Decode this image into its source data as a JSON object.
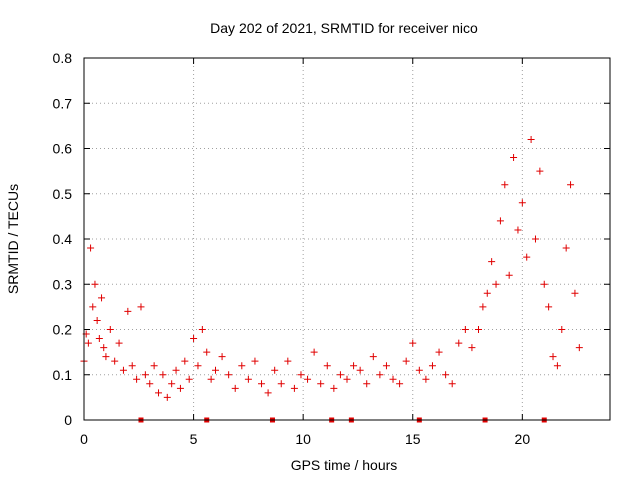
{
  "chart_data": {
    "type": "scatter",
    "title": "Day 202 of 2021, SRMTID for receiver nico",
    "xlabel": "GPS time / hours",
    "ylabel": "SRMTID / TECUs",
    "xlim": [
      0,
      24
    ],
    "ylim": [
      0,
      0.8
    ],
    "x_ticks": [
      "0",
      "5",
      "10",
      "15",
      "20"
    ],
    "y_ticks": [
      "0",
      "0.1",
      "0.2",
      "0.3",
      "0.4",
      "0.5",
      "0.6",
      "0.7",
      "0.8"
    ],
    "grid": true,
    "marker": "plus",
    "color": "#e00000",
    "bottom_markers_hours": [
      2.6,
      5.6,
      8.6,
      11.3,
      12.2,
      15.3,
      18.3,
      21.0
    ],
    "series": [
      {
        "name": "SRMTID",
        "x": [
          0.0,
          0.1,
          0.2,
          0.3,
          0.4,
          0.5,
          0.6,
          0.7,
          0.8,
          0.9,
          1.0,
          1.2,
          1.4,
          1.6,
          1.8,
          2.0,
          2.2,
          2.4,
          2.6,
          2.8,
          3.0,
          3.2,
          3.4,
          3.6,
          3.8,
          4.0,
          4.2,
          4.4,
          4.6,
          4.8,
          5.0,
          5.2,
          5.4,
          5.6,
          5.8,
          6.0,
          6.3,
          6.6,
          6.9,
          7.2,
          7.5,
          7.8,
          8.1,
          8.4,
          8.7,
          9.0,
          9.3,
          9.6,
          9.9,
          10.2,
          10.5,
          10.8,
          11.1,
          11.4,
          11.7,
          12.0,
          12.3,
          12.6,
          12.9,
          13.2,
          13.5,
          13.8,
          14.1,
          14.4,
          14.7,
          15.0,
          15.3,
          15.6,
          15.9,
          16.2,
          16.5,
          16.8,
          17.1,
          17.4,
          17.7,
          18.0,
          18.2,
          18.4,
          18.6,
          18.8,
          19.0,
          19.2,
          19.4,
          19.6,
          19.8,
          20.0,
          20.2,
          20.4,
          20.6,
          20.8,
          21.0,
          21.2,
          21.4,
          21.6,
          21.8,
          22.0,
          22.2,
          22.4,
          22.6
        ],
        "y": [
          0.13,
          0.19,
          0.17,
          0.38,
          0.25,
          0.3,
          0.22,
          0.18,
          0.27,
          0.16,
          0.14,
          0.2,
          0.13,
          0.17,
          0.11,
          0.24,
          0.12,
          0.09,
          0.25,
          0.1,
          0.08,
          0.12,
          0.06,
          0.1,
          0.05,
          0.08,
          0.11,
          0.07,
          0.13,
          0.09,
          0.18,
          0.12,
          0.2,
          0.15,
          0.09,
          0.11,
          0.14,
          0.1,
          0.07,
          0.12,
          0.09,
          0.13,
          0.08,
          0.06,
          0.11,
          0.08,
          0.13,
          0.07,
          0.1,
          0.09,
          0.15,
          0.08,
          0.12,
          0.07,
          0.1,
          0.09,
          0.12,
          0.11,
          0.08,
          0.14,
          0.1,
          0.12,
          0.09,
          0.08,
          0.13,
          0.17,
          0.11,
          0.09,
          0.12,
          0.15,
          0.1,
          0.08,
          0.17,
          0.2,
          0.16,
          0.2,
          0.25,
          0.28,
          0.35,
          0.3,
          0.44,
          0.52,
          0.32,
          0.58,
          0.42,
          0.48,
          0.36,
          0.62,
          0.4,
          0.55,
          0.3,
          0.25,
          0.14,
          0.12,
          0.2,
          0.38,
          0.52,
          0.28,
          0.16
        ]
      }
    ]
  }
}
